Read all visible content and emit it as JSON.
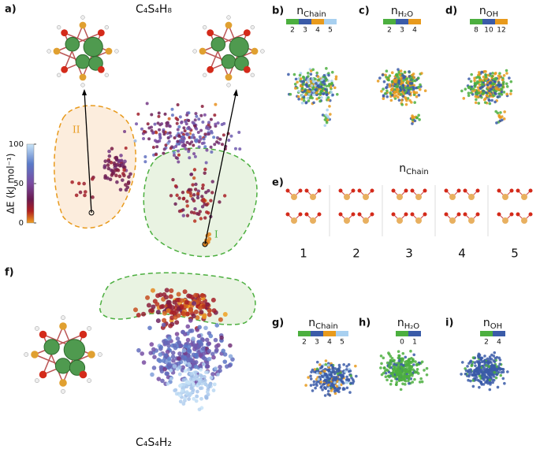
{
  "panel_a": {
    "label": "a)",
    "formula": "C₄S₄H₈",
    "region_labels": [
      "II",
      "I"
    ],
    "colorbar": {
      "label": "ΔE (kJ mol⁻¹)",
      "lim": [
        0,
        100
      ],
      "ticks": [
        0,
        50,
        100
      ]
    }
  },
  "legends_top": [
    {
      "label": "b)",
      "title": {
        "base": "n",
        "sub": "Chain"
      },
      "categories": [
        2,
        3,
        4,
        5
      ],
      "colors": [
        "#4caf3f",
        "#3a5ba8",
        "#e89a1c",
        "#a8d0f0"
      ]
    },
    {
      "label": "c)",
      "title": {
        "base": "n",
        "sub": "H₂O"
      },
      "categories": [
        2,
        3,
        4
      ],
      "colors": [
        "#4caf3f",
        "#3a5ba8",
        "#e89a1c"
      ]
    },
    {
      "label": "d)",
      "title": {
        "base": "n",
        "sub": "OH"
      },
      "categories": [
        8,
        10,
        12
      ],
      "colors": [
        "#4caf3f",
        "#3a5ba8",
        "#e89a1c"
      ]
    }
  ],
  "panel_e": {
    "label": "e)",
    "title": {
      "base": "n",
      "sub": "Chain"
    },
    "numbers": [
      1,
      2,
      3,
      4,
      5
    ]
  },
  "panel_f": {
    "label": "f)",
    "formula": "C₄S₄H₂"
  },
  "legends_bottom": [
    {
      "label": "g)",
      "title": {
        "base": "n",
        "sub": "Chain"
      },
      "categories": [
        2,
        3,
        4,
        5
      ],
      "colors": [
        "#4caf3f",
        "#3a5ba8",
        "#e89a1c",
        "#a8d0f0"
      ]
    },
    {
      "label": "h)",
      "title": {
        "base": "n",
        "sub": "H₂O"
      },
      "categories": [
        0,
        1
      ],
      "colors": [
        "#4caf3f",
        "#3a5ba8"
      ]
    },
    {
      "label": "i)",
      "title": {
        "base": "n",
        "sub": "OH"
      },
      "categories": [
        2,
        4
      ],
      "colors": [
        "#4caf3f",
        "#3a5ba8"
      ]
    }
  ]
}
